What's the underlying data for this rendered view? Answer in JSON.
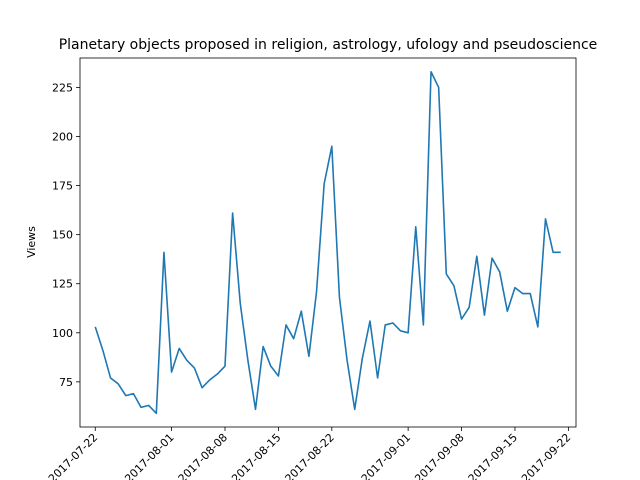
{
  "chart_data": {
    "type": "line",
    "title": "Planetary objects proposed in religion, astrology, ufology and pseudoscience",
    "xlabel": "",
    "ylabel": "Views",
    "ylim": [
      52,
      240
    ],
    "xlim": [
      "2017-07-20",
      "2017-09-23"
    ],
    "grid": false,
    "line_color": "#1f77b4",
    "x_ticks": [
      "2017-07-22",
      "2017-08-01",
      "2017-08-08",
      "2017-08-15",
      "2017-08-22",
      "2017-09-01",
      "2017-09-08",
      "2017-09-15",
      "2017-09-22"
    ],
    "y_ticks": [
      75,
      100,
      125,
      150,
      175,
      200,
      225
    ],
    "series": [
      {
        "x": [
          "2017-07-22",
          "2017-07-23",
          "2017-07-24",
          "2017-07-25",
          "2017-07-26",
          "2017-07-27",
          "2017-07-28",
          "2017-07-29",
          "2017-07-30",
          "2017-07-31",
          "2017-08-01",
          "2017-08-02",
          "2017-08-03",
          "2017-08-04",
          "2017-08-05",
          "2017-08-06",
          "2017-08-07",
          "2017-08-08",
          "2017-08-09",
          "2017-08-10",
          "2017-08-11",
          "2017-08-12",
          "2017-08-13",
          "2017-08-14",
          "2017-08-15",
          "2017-08-16",
          "2017-08-17",
          "2017-08-18",
          "2017-08-19",
          "2017-08-20",
          "2017-08-21",
          "2017-08-22",
          "2017-08-23",
          "2017-08-24",
          "2017-08-25",
          "2017-08-26",
          "2017-08-27",
          "2017-08-28",
          "2017-08-29",
          "2017-08-30",
          "2017-08-31",
          "2017-09-01",
          "2017-09-02",
          "2017-09-03",
          "2017-09-04",
          "2017-09-05",
          "2017-09-06",
          "2017-09-07",
          "2017-09-08",
          "2017-09-09",
          "2017-09-10",
          "2017-09-11",
          "2017-09-12",
          "2017-09-13",
          "2017-09-14",
          "2017-09-15",
          "2017-09-16",
          "2017-09-17",
          "2017-09-18",
          "2017-09-19",
          "2017-09-20",
          "2017-09-21"
        ],
        "values": [
          103,
          91,
          77,
          74,
          68,
          69,
          62,
          63,
          59,
          141,
          80,
          92,
          86,
          82,
          72,
          76,
          79,
          83,
          161,
          115,
          86,
          61,
          93,
          83,
          78,
          104,
          97,
          111,
          88,
          121,
          176,
          195,
          118,
          86,
          61,
          87,
          106,
          77,
          104,
          105,
          101,
          100,
          154,
          104,
          233,
          225,
          130,
          124,
          107,
          113,
          139,
          109,
          138,
          131,
          111,
          123,
          120,
          120,
          103,
          158,
          141,
          141
        ]
      }
    ]
  }
}
